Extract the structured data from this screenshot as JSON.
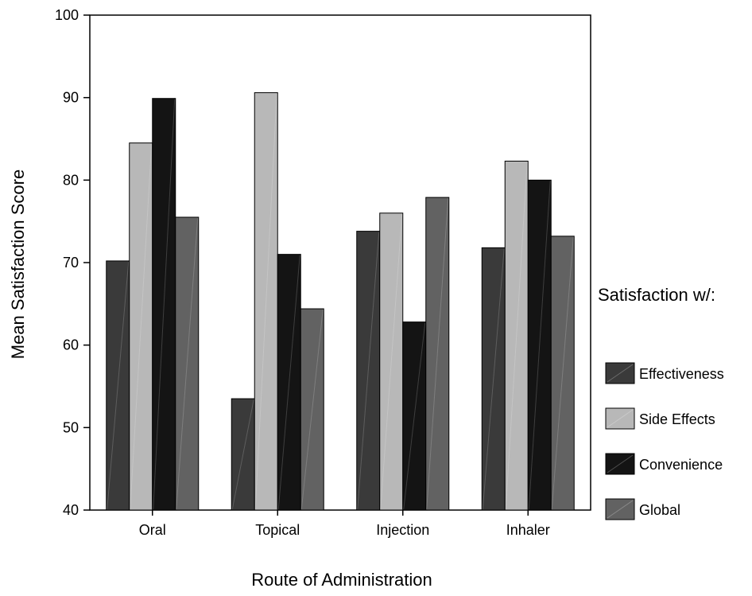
{
  "chart_data": {
    "type": "bar",
    "title": "",
    "xlabel": "Route of Administration",
    "ylabel": "Mean Satisfaction Score",
    "ylim": [
      40,
      100
    ],
    "yticks": [
      40,
      50,
      60,
      70,
      80,
      90,
      100
    ],
    "grid": false,
    "legend_position": "right",
    "legend_title": "Satisfaction w/:",
    "categories": [
      "Oral",
      "Topical",
      "Injection",
      "Inhaler"
    ],
    "series": [
      {
        "name": "Effectiveness",
        "values": [
          70.2,
          53.5,
          73.8,
          71.8
        ],
        "color": "#3a3a3a"
      },
      {
        "name": "Side Effects",
        "values": [
          84.5,
          90.6,
          76.0,
          82.3
        ],
        "color": "#b8b8b8"
      },
      {
        "name": "Convenience",
        "values": [
          89.9,
          71.0,
          62.8,
          80.0
        ],
        "color": "#141414"
      },
      {
        "name": "Global",
        "values": [
          75.5,
          64.4,
          77.9,
          73.2
        ],
        "color": "#626262"
      }
    ]
  }
}
